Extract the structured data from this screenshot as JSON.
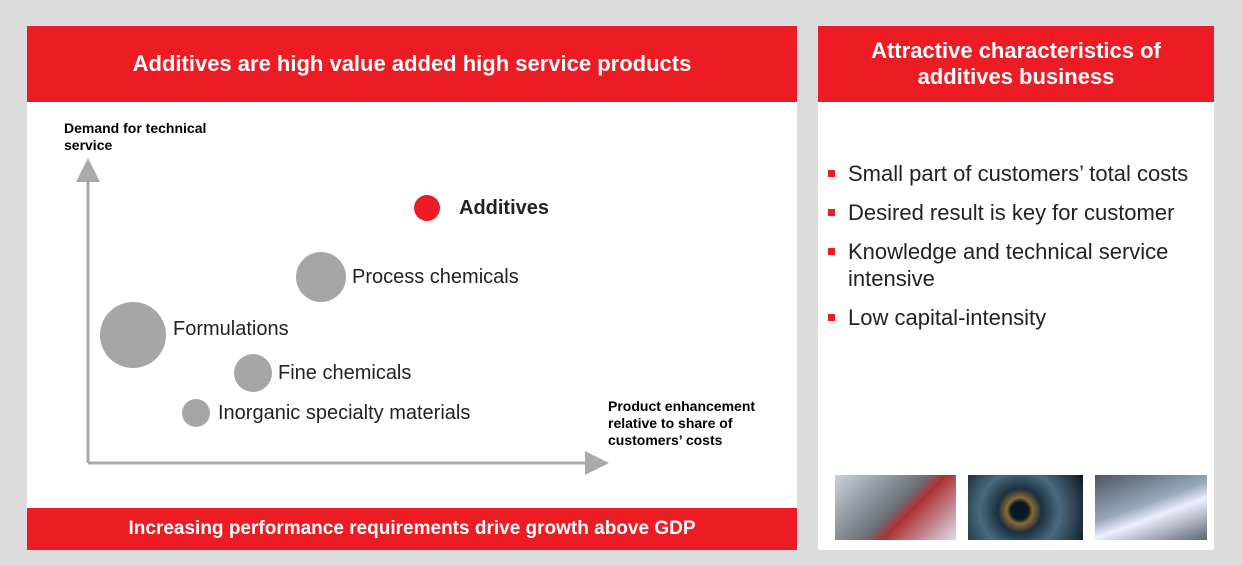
{
  "left": {
    "title": "Additives are high value added high service products",
    "y_axis_label": "Demand for technical service",
    "x_axis_label": "Product enhancement relative to share of customers’ costs",
    "nodes": [
      {
        "label": "Additives"
      },
      {
        "label": "Process chemicals"
      },
      {
        "label": "Formulations"
      },
      {
        "label": "Fine chemicals"
      },
      {
        "label": "Inorganic specialty materials"
      }
    ],
    "footer": "Increasing performance requirements drive growth above GDP"
  },
  "right": {
    "title": "Attractive characteristics of additives business",
    "bullets": [
      "Small part of customers’ total costs",
      "Desired result is key for customer",
      "Knowledge and technical service intensive",
      "Low capital-intensity"
    ]
  }
}
